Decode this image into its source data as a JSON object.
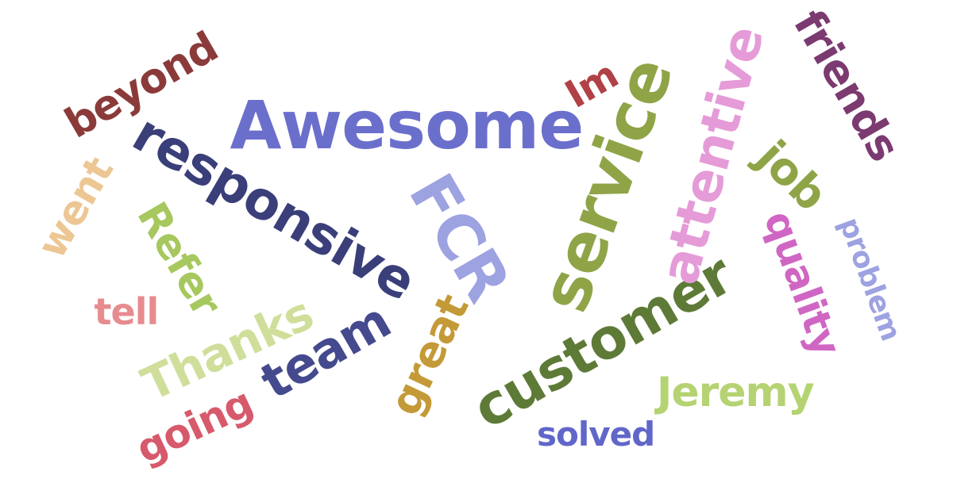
{
  "words": [
    {
      "key": "awesome",
      "text": "Awesome",
      "color": "#6b6fcc"
    },
    {
      "key": "beyond",
      "text": "beyond",
      "color": "#8b3a3a"
    },
    {
      "key": "responsive",
      "text": "responsive",
      "color": "#3a3f7a"
    },
    {
      "key": "went",
      "text": "went",
      "color": "#ecc793"
    },
    {
      "key": "refer",
      "text": "Refer",
      "color": "#a6c85e"
    },
    {
      "key": "tell",
      "text": "tell",
      "color": "#e78b8f"
    },
    {
      "key": "thanks",
      "text": "Thanks",
      "color": "#cfdf9b"
    },
    {
      "key": "going",
      "text": "going",
      "color": "#d65a6b"
    },
    {
      "key": "team",
      "text": "team",
      "color": "#454a8e"
    },
    {
      "key": "fcr",
      "text": "FCR",
      "color": "#9da2e1"
    },
    {
      "key": "great",
      "text": "great",
      "color": "#c49a38"
    },
    {
      "key": "im",
      "text": "Im",
      "color": "#b04146"
    },
    {
      "key": "service",
      "text": "service",
      "color": "#8fa447"
    },
    {
      "key": "customer",
      "text": "customer",
      "color": "#5e7a37"
    },
    {
      "key": "attentive",
      "text": "attentive",
      "color": "#e59bd7"
    },
    {
      "key": "friends",
      "text": "friends",
      "color": "#7b3a70"
    },
    {
      "key": "job",
      "text": "job",
      "color": "#8fa447"
    },
    {
      "key": "quality",
      "text": "quality",
      "color": "#d066c4"
    },
    {
      "key": "problem",
      "text": "problem",
      "color": "#9da2e1"
    },
    {
      "key": "jeremy",
      "text": "Jeremy",
      "color": "#b5d372"
    },
    {
      "key": "solved",
      "text": "solved",
      "color": "#6166c9"
    }
  ]
}
